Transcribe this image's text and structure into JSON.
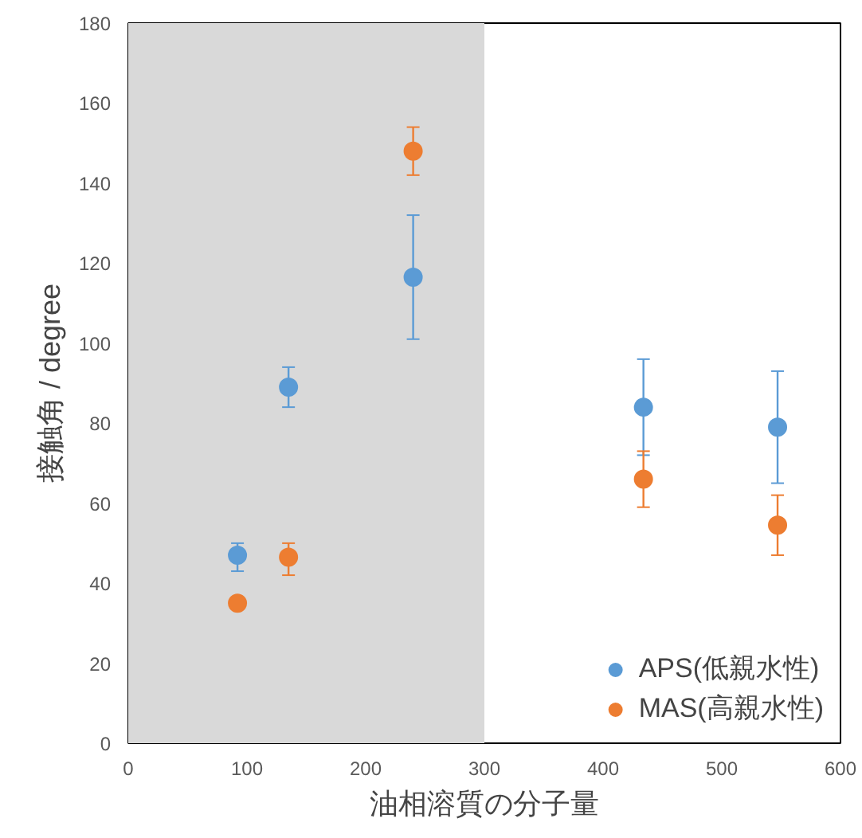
{
  "chart_data": {
    "type": "scatter",
    "xlabel": "油相溶質の分子量",
    "ylabel": "接触角 / degree",
    "xlim": [
      0,
      600
    ],
    "xticks": [
      0,
      100,
      200,
      300,
      400,
      500,
      600
    ],
    "ylim": [
      0,
      180
    ],
    "yticks": [
      0,
      20,
      40,
      60,
      80,
      100,
      120,
      140,
      160,
      180
    ],
    "x": [
      92,
      135,
      240,
      434,
      547
    ],
    "series": [
      {
        "name": "APS(低親水性)",
        "color": "#5b9bd5",
        "values": [
          47,
          89,
          116.5,
          84,
          79
        ],
        "errors": [
          [
            43,
            50
          ],
          [
            84,
            94
          ],
          [
            101,
            132
          ],
          [
            72,
            96
          ],
          [
            65,
            93
          ]
        ]
      },
      {
        "name": "MAS(高親水性)",
        "color": "#ed7d31",
        "values": [
          35,
          46.5,
          148,
          66,
          54.5
        ],
        "errors": [
          null,
          [
            42,
            50
          ],
          [
            142,
            154
          ],
          [
            59,
            73
          ],
          [
            47,
            62
          ]
        ]
      }
    ],
    "bands": [
      {
        "axis": "x",
        "from": 0,
        "to": 300,
        "color": "#d9d9d9"
      }
    ],
    "grid": false,
    "legend": "bottom right",
    "marker": "circle"
  }
}
